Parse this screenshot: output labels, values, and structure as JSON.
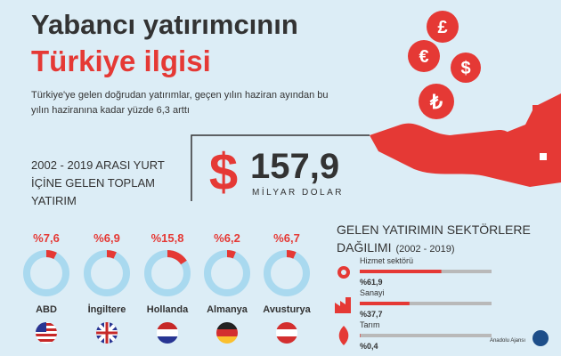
{
  "header": {
    "title_line1": "Yabancı yatırımcının",
    "title_line2": "Türkiye ilgisi",
    "subtitle_lines": [
      "Türkiye'ye gelen doğrudan yatırımlar, geçen yılın haziran ayından bu",
      "yılın haziranına kadar yüzde 6,3 arttı"
    ]
  },
  "total": {
    "label_lines": [
      "2002 - 2019 ARASI YURT",
      "İÇİNE GELEN TOPLAM",
      "YATIRIM"
    ],
    "currency": "$",
    "amount": "157,9",
    "unit": "MİLYAR DOLAR"
  },
  "countries": {
    "type": "donut",
    "color": "#e53935",
    "track_color": "#a9d9ef",
    "items": [
      {
        "name": "ABD",
        "value": 7.6,
        "label": "%7,6"
      },
      {
        "name": "İngiltere",
        "value": 6.9,
        "label": "%6,9"
      },
      {
        "name": "Hollanda",
        "value": 15.8,
        "label": "%15,8"
      },
      {
        "name": "Almanya",
        "value": 6.2,
        "label": "%6,2"
      },
      {
        "name": "Avusturya",
        "value": 6.7,
        "label": "%6,7"
      }
    ]
  },
  "sectors": {
    "type": "bar",
    "title": "GELEN YATIRIMIN SEKTÖRLERE",
    "title2": "DAĞILIMI",
    "period": "(2002 - 2019)",
    "color": "#e53935",
    "track_color": "#b9b9b9",
    "items": [
      {
        "name": "Hizmet sektörü",
        "value": 61.9,
        "label": "%61,9"
      },
      {
        "name": "Sanayi",
        "value": 37.7,
        "label": "%37,7"
      },
      {
        "name": "Tarım",
        "value": 0.4,
        "label": "%0,4"
      }
    ]
  },
  "source": "Anadolu Ajansı"
}
